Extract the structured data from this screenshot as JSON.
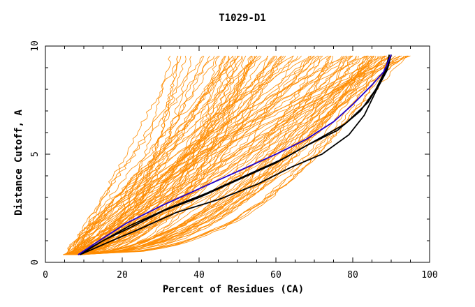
{
  "chart_data": {
    "type": "line",
    "title": "T1029-D1",
    "xlabel": "Percent of Residues (CA)",
    "ylabel": "Distance Cutoff, A",
    "xlim": [
      0,
      100
    ],
    "ylim": [
      0,
      10
    ],
    "x_ticks": [
      "0",
      "20",
      "40",
      "60",
      "80",
      "100"
    ],
    "y_ticks": [
      "0",
      "5",
      "10"
    ],
    "grid": false,
    "colors": {
      "models": "#ff8c00",
      "highlight_blue": "#2200cc",
      "highlight_black": "#000000"
    },
    "series": [
      {
        "color": "#2200cc",
        "x": [
          8.5,
          14,
          21,
          30,
          40,
          50,
          60,
          68,
          75,
          80,
          85,
          88,
          90
        ],
        "y": [
          0.35,
          1.0,
          1.8,
          2.6,
          3.4,
          4.2,
          5.0,
          5.7,
          6.5,
          7.3,
          8.2,
          8.8,
          9.6
        ]
      },
      {
        "color": "#000000",
        "x": [
          8.5,
          15,
          22,
          31,
          40,
          50,
          60,
          68,
          76,
          82,
          86,
          88.5,
          89.5
        ],
        "y": [
          0.35,
          1.0,
          1.6,
          2.4,
          3.0,
          3.8,
          4.6,
          5.4,
          6.1,
          7.0,
          8.0,
          8.9,
          9.6
        ]
      },
      {
        "color": "#000000",
        "x": [
          9,
          16,
          24,
          34,
          45,
          55,
          64,
          72,
          79,
          83,
          86,
          89,
          90
        ],
        "y": [
          0.35,
          0.9,
          1.5,
          2.3,
          2.9,
          3.6,
          4.4,
          5.0,
          5.9,
          6.8,
          7.9,
          8.9,
          9.6
        ]
      },
      {
        "color": "#000000",
        "x": [
          9,
          15,
          22,
          32,
          42,
          52,
          62,
          70,
          78,
          84,
          87,
          89,
          90
        ],
        "y": [
          0.35,
          1.0,
          1.7,
          2.5,
          3.2,
          4.0,
          4.8,
          5.6,
          6.4,
          7.4,
          8.3,
          9.0,
          9.6
        ]
      }
    ]
  }
}
